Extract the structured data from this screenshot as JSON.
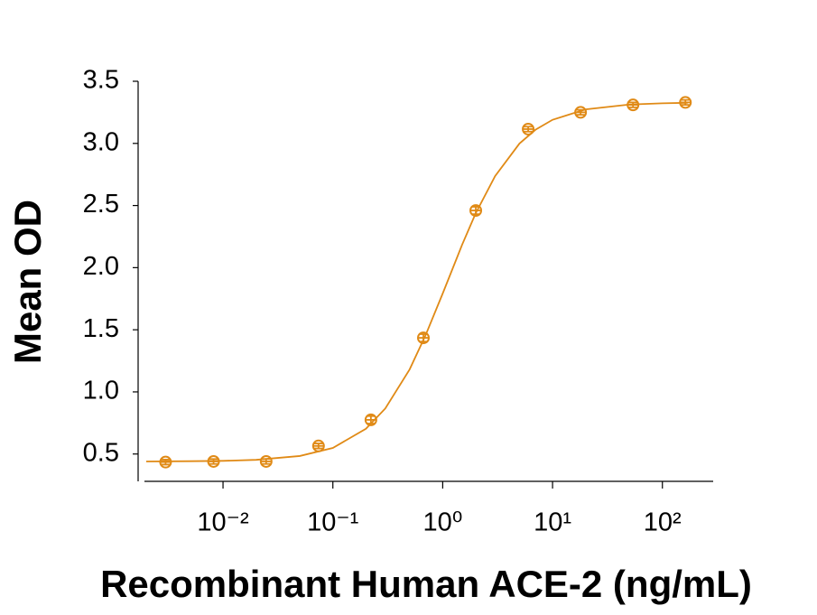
{
  "chart_data": {
    "type": "scatter",
    "x_label": "Recombinant Human ACE-2 (ng/mL)",
    "y_label": "Mean OD",
    "x_log": true,
    "xlim": [
      0.002,
      290
    ],
    "ylim": [
      0.28,
      3.5
    ],
    "xticks": [
      {
        "value": 0.01,
        "label": "10⁻²"
      },
      {
        "value": 0.1,
        "label": "10⁻¹"
      },
      {
        "value": 1,
        "label": "10⁰"
      },
      {
        "value": 10,
        "label": "10¹"
      },
      {
        "value": 100,
        "label": "10²"
      }
    ],
    "yticks": [
      0.5,
      {
        "value": 1,
        "label": "1.0"
      },
      1.5,
      {
        "value": 2,
        "label": "2.0"
      },
      2.5,
      {
        "value": 3,
        "label": "3.0"
      },
      3.5
    ],
    "color": "#e08a16",
    "x": [
      0.003,
      0.0082,
      0.0247,
      0.074,
      0.222,
      0.667,
      2,
      6,
      18,
      54,
      162
    ],
    "values": [
      0.435,
      0.44,
      0.44,
      0.565,
      0.775,
      1.435,
      2.46,
      3.115,
      3.25,
      3.31,
      3.33
    ],
    "errors": [
      0.02,
      0.02,
      0.02,
      0.02,
      0.03,
      0.03,
      0.03,
      0.02,
      0.02,
      0.02,
      0.02
    ],
    "fit": {
      "x": [
        0.002,
        0.005,
        0.01,
        0.02,
        0.05,
        0.1,
        0.2,
        0.3,
        0.5,
        0.7,
        1,
        1.5,
        2,
        3,
        5,
        7,
        10,
        20,
        50,
        100,
        170
      ],
      "values": [
        0.44,
        0.442,
        0.445,
        0.453,
        0.484,
        0.549,
        0.703,
        0.866,
        1.181,
        1.458,
        1.792,
        2.183,
        2.439,
        2.737,
        2.999,
        3.11,
        3.19,
        3.274,
        3.313,
        3.323,
        3.327
      ]
    }
  }
}
